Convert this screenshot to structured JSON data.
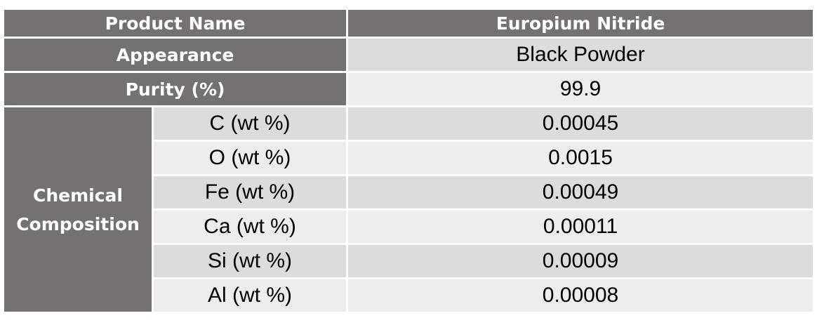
{
  "product_name": {
    "label": "Product Name",
    "value": "Europium Nitride"
  },
  "appearance": {
    "label": "Appearance",
    "value": "Black Powder"
  },
  "purity": {
    "label": "Purity (%)",
    "value": "99.9"
  },
  "chemical_composition": {
    "label_line1": "Chemical",
    "label_line2": "Composition",
    "rows": [
      {
        "element": "C (wt %)",
        "value": "0.00045"
      },
      {
        "element": "O (wt %)",
        "value": "0.0015"
      },
      {
        "element": "Fe (wt %)",
        "value": "0.00049"
      },
      {
        "element": "Ca (wt %)",
        "value": "0.00011"
      },
      {
        "element": "Si (wt %)",
        "value": "0.00009"
      },
      {
        "element": "Al (wt %)",
        "value": "0.00008"
      }
    ]
  },
  "colors": {
    "header_bg": "#767171",
    "light_row": "#ededed",
    "dark_row": "#dcdcdc"
  }
}
